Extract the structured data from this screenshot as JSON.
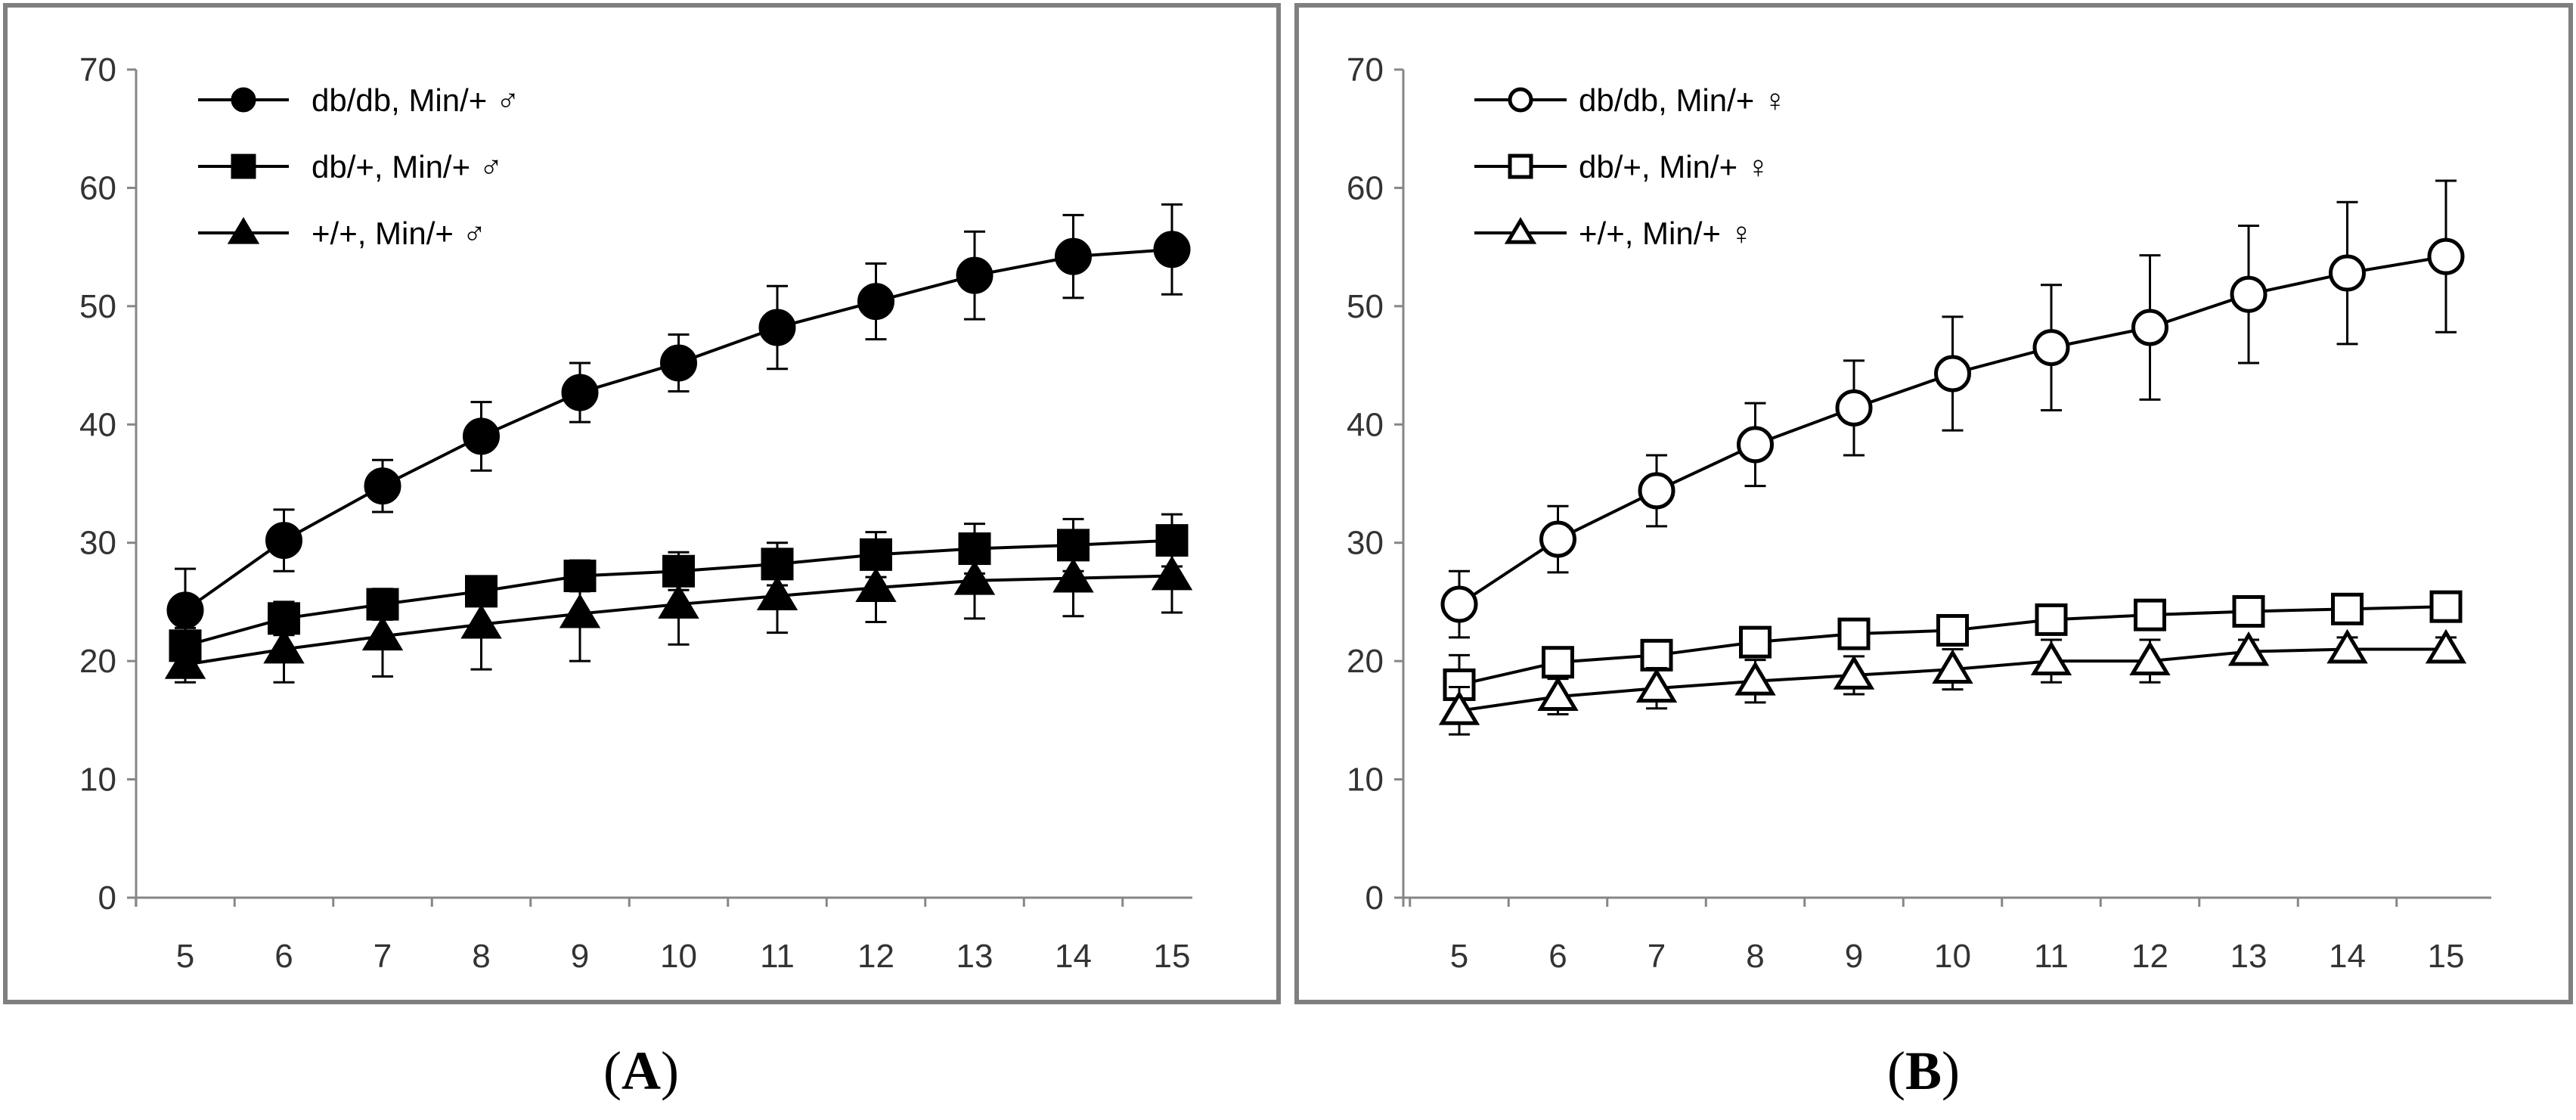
{
  "colors": {
    "frame": "#7f7f7f",
    "axis": "#868686",
    "series": "#000000",
    "background": "#ffffff"
  },
  "chart_data": [
    {
      "type": "line",
      "panel": "A",
      "title": "",
      "xlabel": "",
      "ylabel": "",
      "x": [
        5,
        6,
        7,
        8,
        9,
        10,
        11,
        12,
        13,
        14,
        15
      ],
      "xticks": [
        "5",
        "6",
        "7",
        "8",
        "9",
        "10",
        "11",
        "12",
        "13",
        "14",
        "15"
      ],
      "ylim": [
        0,
        70
      ],
      "yticks": [
        "0",
        "10",
        "20",
        "30",
        "40",
        "50",
        "60",
        "70"
      ],
      "legend_position": "top-left",
      "series": [
        {
          "name": "db/db, Min/+ ♂",
          "marker": "circle",
          "filled": true,
          "values": [
            24.3,
            30.2,
            34.8,
            39.0,
            42.7,
            45.2,
            48.2,
            50.4,
            52.6,
            54.2,
            54.8
          ],
          "error": [
            3.5,
            2.6,
            2.2,
            2.9,
            2.5,
            2.4,
            3.5,
            3.2,
            3.7,
            3.5,
            3.8
          ]
        },
        {
          "name": "db/+, Min/+ ♂",
          "marker": "square",
          "filled": true,
          "values": [
            21.3,
            23.6,
            24.8,
            25.9,
            27.2,
            27.6,
            28.2,
            29.0,
            29.5,
            29.8,
            30.2
          ],
          "error": [
            1.5,
            1.4,
            1.3,
            1.2,
            1.3,
            1.6,
            1.8,
            1.9,
            2.1,
            2.2,
            2.2
          ]
        },
        {
          "name": "+/+, Min/+ ♂",
          "marker": "triangle",
          "filled": true,
          "values": [
            19.7,
            21.0,
            22.1,
            23.1,
            24.0,
            24.8,
            25.5,
            26.2,
            26.8,
            27.0,
            27.2
          ],
          "error": [
            1.5,
            2.8,
            3.4,
            3.8,
            4.0,
            3.4,
            3.1,
            2.9,
            3.2,
            3.2,
            3.1
          ]
        }
      ]
    },
    {
      "type": "line",
      "panel": "B",
      "title": "",
      "xlabel": "",
      "ylabel": "",
      "x": [
        5,
        6,
        7,
        8,
        9,
        10,
        11,
        12,
        13,
        14,
        15
      ],
      "xticks": [
        "5",
        "6",
        "7",
        "8",
        "9",
        "10",
        "11",
        "12",
        "13",
        "14",
        "15"
      ],
      "ylim": [
        0,
        70
      ],
      "yticks": [
        "0",
        "10",
        "20",
        "30",
        "40",
        "50",
        "60",
        "70"
      ],
      "legend_position": "top-left",
      "series": [
        {
          "name": "db/db, Min/+ ♀",
          "marker": "circle",
          "filled": false,
          "values": [
            24.8,
            30.3,
            34.4,
            38.3,
            41.4,
            44.3,
            46.5,
            48.2,
            51.0,
            52.8,
            54.2
          ],
          "error": [
            2.8,
            2.8,
            3.0,
            3.5,
            4.0,
            4.8,
            5.3,
            6.1,
            5.8,
            6.0,
            6.4
          ]
        },
        {
          "name": "db/+, Min/+ ♀",
          "marker": "square",
          "filled": false,
          "values": [
            18.0,
            19.9,
            20.5,
            21.6,
            22.3,
            22.6,
            23.5,
            23.9,
            24.2,
            24.4,
            24.6
          ],
          "error": [
            2.5,
            1.2,
            1.1,
            1.2,
            1.0,
            1.0,
            1.0,
            1.0,
            1.0,
            1.0,
            1.0
          ]
        },
        {
          "name": "+/+, Min/+ ♀",
          "marker": "triangle",
          "filled": false,
          "values": [
            15.8,
            17.0,
            17.7,
            18.3,
            18.8,
            19.3,
            20.0,
            20.0,
            20.8,
            21.0,
            21.0
          ],
          "error": [
            2.0,
            1.5,
            1.7,
            1.8,
            1.6,
            1.7,
            1.8,
            1.8,
            1.0,
            1.0,
            1.0
          ]
        }
      ]
    }
  ],
  "panel_labels": {
    "a": "A",
    "b": "B"
  }
}
